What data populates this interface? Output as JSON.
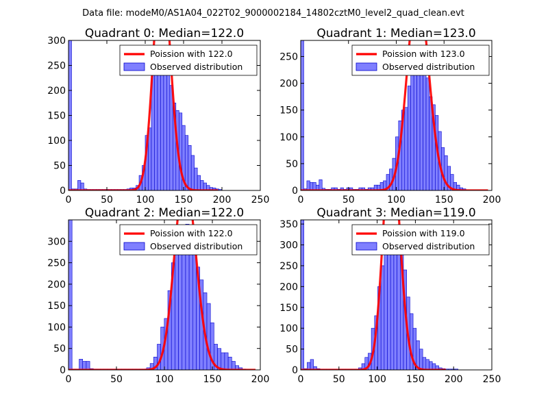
{
  "figure": {
    "title": "Data file: modeM0/AS1A04_022T02_9000002184_14802cztM0_level2_quad_clean.evt"
  },
  "colors": {
    "hist_fill": "#7f7fff",
    "hist_edge": "#0000cc",
    "poisson_line": "#ff0000"
  },
  "chart_data": [
    {
      "type": "bar",
      "title": "Quadrant 0: Median=122.0",
      "xlim": [
        0,
        250
      ],
      "ylim": [
        0,
        300
      ],
      "xticks": [
        0,
        50,
        100,
        150,
        200,
        250
      ],
      "yticks": [
        0,
        50,
        100,
        150,
        200,
        250,
        300
      ],
      "bin_width": 4,
      "median": 122.0,
      "line_scale": 12500,
      "legend": [
        "Poission with 122.0",
        "Observed distribution"
      ],
      "bars": [
        [
          0,
          300
        ],
        [
          4,
          3
        ],
        [
          8,
          3
        ],
        [
          12,
          20
        ],
        [
          16,
          15
        ],
        [
          20,
          3
        ],
        [
          24,
          2
        ],
        [
          28,
          2
        ],
        [
          32,
          2
        ],
        [
          36,
          2
        ],
        [
          40,
          2
        ],
        [
          44,
          2
        ],
        [
          48,
          2
        ],
        [
          52,
          2
        ],
        [
          56,
          2
        ],
        [
          60,
          2
        ],
        [
          64,
          2
        ],
        [
          68,
          2
        ],
        [
          72,
          2
        ],
        [
          76,
          3
        ],
        [
          80,
          5
        ],
        [
          84,
          5
        ],
        [
          88,
          10
        ],
        [
          92,
          30
        ],
        [
          96,
          50
        ],
        [
          100,
          110
        ],
        [
          104,
          125
        ],
        [
          108,
          255
        ],
        [
          112,
          260
        ],
        [
          116,
          280
        ],
        [
          120,
          285
        ],
        [
          124,
          255
        ],
        [
          128,
          260
        ],
        [
          132,
          210
        ],
        [
          136,
          175
        ],
        [
          140,
          160
        ],
        [
          144,
          155
        ],
        [
          148,
          130
        ],
        [
          152,
          110
        ],
        [
          156,
          90
        ],
        [
          160,
          70
        ],
        [
          164,
          45
        ],
        [
          168,
          30
        ],
        [
          172,
          20
        ],
        [
          176,
          15
        ],
        [
          180,
          10
        ],
        [
          184,
          6
        ],
        [
          188,
          5
        ],
        [
          192,
          3
        ],
        [
          196,
          2
        ]
      ]
    },
    {
      "type": "bar",
      "title": "Quadrant 1: Median=123.0",
      "xlim": [
        0,
        200
      ],
      "ylim": [
        0,
        280
      ],
      "xticks": [
        0,
        50,
        100,
        150,
        200
      ],
      "yticks": [
        0,
        50,
        100,
        150,
        200,
        250
      ],
      "bin_width": 3.2,
      "median": 123.0,
      "line_scale": 10500,
      "legend": [
        "Poission with 123.0",
        "Observed distribution"
      ],
      "bars": [
        [
          0,
          280
        ],
        [
          3.2,
          3
        ],
        [
          6.4,
          18
        ],
        [
          9.6,
          15
        ],
        [
          12.8,
          15
        ],
        [
          16,
          10
        ],
        [
          19.2,
          20
        ],
        [
          22.4,
          4
        ],
        [
          25.6,
          2
        ],
        [
          28.8,
          2
        ],
        [
          32,
          5
        ],
        [
          35.2,
          5
        ],
        [
          38.4,
          2
        ],
        [
          41.6,
          5
        ],
        [
          44.8,
          2
        ],
        [
          48,
          5
        ],
        [
          51.2,
          5
        ],
        [
          54.4,
          2
        ],
        [
          57.6,
          2
        ],
        [
          60.8,
          5
        ],
        [
          64,
          5
        ],
        [
          67.2,
          2
        ],
        [
          70.4,
          5
        ],
        [
          73.6,
          5
        ],
        [
          76.8,
          10
        ],
        [
          80,
          10
        ],
        [
          83.2,
          15
        ],
        [
          86.4,
          18
        ],
        [
          89.6,
          30
        ],
        [
          92.8,
          40
        ],
        [
          96,
          60
        ],
        [
          99.2,
          100
        ],
        [
          102.4,
          130
        ],
        [
          105.6,
          150
        ],
        [
          108.8,
          155
        ],
        [
          112,
          195
        ],
        [
          115.2,
          215
        ],
        [
          118.4,
          230
        ],
        [
          121.6,
          255
        ],
        [
          124.8,
          265
        ],
        [
          128,
          245
        ],
        [
          131.2,
          210
        ],
        [
          134.4,
          175
        ],
        [
          137.6,
          160
        ],
        [
          140.8,
          140
        ],
        [
          144,
          110
        ],
        [
          147.2,
          80
        ],
        [
          150.4,
          65
        ],
        [
          153.6,
          45
        ],
        [
          156.8,
          30
        ],
        [
          160,
          15
        ],
        [
          163.2,
          10
        ],
        [
          166.4,
          5
        ],
        [
          169.6,
          3
        ]
      ]
    },
    {
      "type": "bar",
      "title": "Quadrant 2: Median=122.0",
      "xlim": [
        0,
        200
      ],
      "ylim": [
        0,
        350
      ],
      "xticks": [
        0,
        50,
        100,
        150,
        200
      ],
      "yticks": [
        0,
        50,
        100,
        150,
        200,
        250,
        300
      ],
      "bin_width": 3.7,
      "median": 122.0,
      "line_scale": 12500,
      "legend": [
        "Poission with 122.0",
        "Observed distribution"
      ],
      "bars": [
        [
          0,
          350
        ],
        [
          3.7,
          2
        ],
        [
          7.4,
          2
        ],
        [
          11.1,
          25
        ],
        [
          14.8,
          20
        ],
        [
          18.5,
          20
        ],
        [
          22.2,
          3
        ],
        [
          25.9,
          2
        ],
        [
          29.6,
          2
        ],
        [
          33.3,
          2
        ],
        [
          37,
          2
        ],
        [
          40.7,
          2
        ],
        [
          44.4,
          2
        ],
        [
          48.1,
          2
        ],
        [
          51.8,
          2
        ],
        [
          55.5,
          2
        ],
        [
          59.2,
          2
        ],
        [
          62.9,
          2
        ],
        [
          66.6,
          2
        ],
        [
          70.3,
          2
        ],
        [
          74,
          2
        ],
        [
          77.7,
          2
        ],
        [
          81.4,
          5
        ],
        [
          85.1,
          15
        ],
        [
          88.8,
          30
        ],
        [
          92.5,
          60
        ],
        [
          96.2,
          100
        ],
        [
          99.9,
          120
        ],
        [
          103.6,
          185
        ],
        [
          107.3,
          250
        ],
        [
          111,
          300
        ],
        [
          114.7,
          310
        ],
        [
          118.4,
          310
        ],
        [
          122.1,
          340
        ],
        [
          125.8,
          330
        ],
        [
          129.5,
          305
        ],
        [
          133.2,
          240
        ],
        [
          136.9,
          210
        ],
        [
          140.6,
          180
        ],
        [
          144.3,
          155
        ],
        [
          148,
          110
        ],
        [
          151.7,
          60
        ],
        [
          155.4,
          50
        ],
        [
          159.1,
          40
        ],
        [
          162.8,
          40
        ],
        [
          166.5,
          30
        ],
        [
          170.2,
          20
        ],
        [
          173.9,
          10
        ],
        [
          177.6,
          5
        ],
        [
          181.3,
          2
        ]
      ]
    },
    {
      "type": "bar",
      "title": "Quadrant 3: Median=119.0",
      "xlim": [
        0,
        250
      ],
      "ylim": [
        0,
        360
      ],
      "xticks": [
        0,
        50,
        100,
        150,
        200,
        250
      ],
      "yticks": [
        0,
        50,
        100,
        150,
        200,
        250,
        300,
        350
      ],
      "bin_width": 4.2,
      "median": 119.0,
      "line_scale": 15000,
      "legend": [
        "Poission with 119.0",
        "Observed distribution"
      ],
      "bars": [
        [
          0,
          360
        ],
        [
          4.2,
          3
        ],
        [
          8.4,
          18
        ],
        [
          12.6,
          25
        ],
        [
          16.8,
          8
        ],
        [
          21,
          3
        ],
        [
          25.2,
          2
        ],
        [
          29.4,
          2
        ],
        [
          33.6,
          2
        ],
        [
          37.8,
          2
        ],
        [
          42,
          2
        ],
        [
          46.2,
          2
        ],
        [
          50.4,
          2
        ],
        [
          54.6,
          2
        ],
        [
          58.8,
          2
        ],
        [
          63,
          2
        ],
        [
          67.2,
          2
        ],
        [
          71.4,
          2
        ],
        [
          75.6,
          5
        ],
        [
          79.8,
          15
        ],
        [
          84,
          30
        ],
        [
          88.2,
          40
        ],
        [
          92.4,
          100
        ],
        [
          96.6,
          130
        ],
        [
          100.8,
          200
        ],
        [
          105,
          250
        ],
        [
          109.2,
          300
        ],
        [
          113.4,
          320
        ],
        [
          117.6,
          340
        ],
        [
          121.8,
          290
        ],
        [
          126,
          300
        ],
        [
          130.2,
          280
        ],
        [
          134.4,
          240
        ],
        [
          138.6,
          175
        ],
        [
          142.8,
          135
        ],
        [
          147,
          100
        ],
        [
          151.2,
          70
        ],
        [
          155.4,
          50
        ],
        [
          159.6,
          30
        ],
        [
          163.8,
          25
        ],
        [
          168,
          20
        ],
        [
          172.2,
          15
        ],
        [
          176.4,
          10
        ],
        [
          180.6,
          5
        ],
        [
          184.8,
          3
        ],
        [
          189,
          2
        ],
        [
          193.2,
          2
        ],
        [
          197.4,
          2
        ],
        [
          201.6,
          2
        ]
      ]
    }
  ]
}
